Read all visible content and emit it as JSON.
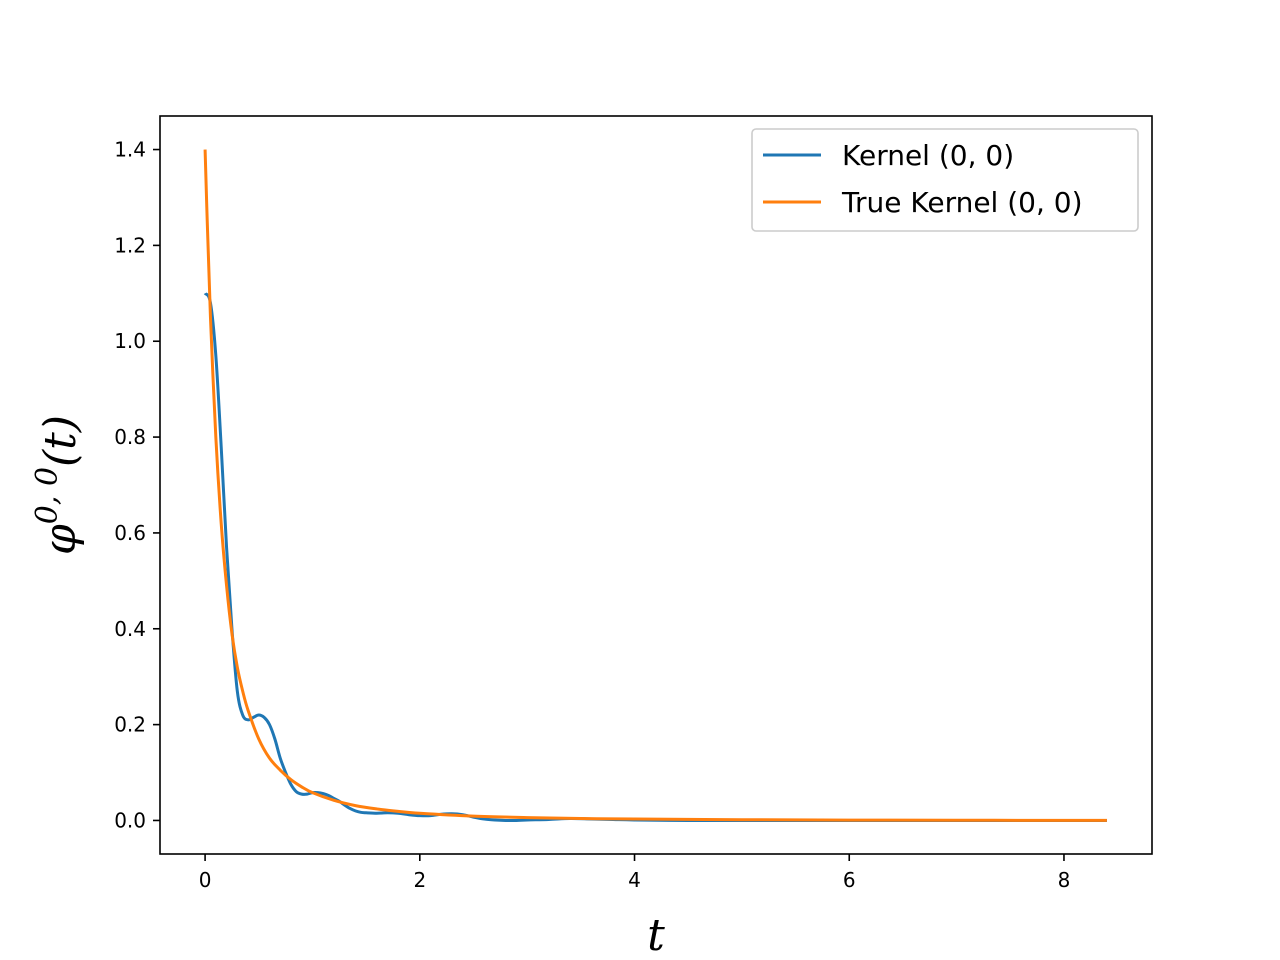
{
  "chart_data": {
    "type": "line",
    "title": "",
    "xlabel": "t",
    "ylabel": "φ0,0(t)",
    "ylabel_parts": {
      "base": "φ",
      "sup": "0, 0",
      "arg": "(t)"
    },
    "xlim": [
      -0.42,
      8.82
    ],
    "ylim": [
      -0.07,
      1.47
    ],
    "xticks": [
      0,
      2,
      4,
      6,
      8
    ],
    "xtick_labels": [
      "0",
      "2",
      "4",
      "6",
      "8"
    ],
    "yticks": [
      0.0,
      0.2,
      0.4,
      0.6,
      0.8,
      1.0,
      1.2,
      1.4
    ],
    "ytick_labels": [
      "0.0",
      "0.2",
      "0.4",
      "0.6",
      "0.8",
      "1.0",
      "1.2",
      "1.4"
    ],
    "grid": false,
    "legend_position": "top-right",
    "series": [
      {
        "name": "Kernel (0, 0)",
        "color": "#1f77b4",
        "x": [
          0,
          0.05,
          0.1,
          0.15,
          0.2,
          0.25,
          0.3,
          0.35,
          0.4,
          0.45,
          0.5,
          0.55,
          0.6,
          0.65,
          0.7,
          0.75,
          0.8,
          0.85,
          0.9,
          0.95,
          1.0,
          1.05,
          1.1,
          1.15,
          1.2,
          1.25,
          1.3,
          1.35,
          1.4,
          1.45,
          1.5,
          1.6,
          1.7,
          1.8,
          1.9,
          2.0,
          2.1,
          2.2,
          2.3,
          2.4,
          2.5,
          2.6,
          2.7,
          2.8,
          2.9,
          3.0,
          3.2,
          3.4,
          3.6,
          3.8,
          4.0,
          4.5,
          5.0,
          6.0,
          7.0,
          8.0,
          8.4
        ],
        "y": [
          1.1,
          1.08,
          0.97,
          0.78,
          0.57,
          0.4,
          0.27,
          0.22,
          0.21,
          0.215,
          0.22,
          0.215,
          0.2,
          0.17,
          0.13,
          0.1,
          0.075,
          0.06,
          0.055,
          0.055,
          0.058,
          0.058,
          0.056,
          0.052,
          0.046,
          0.04,
          0.032,
          0.025,
          0.02,
          0.017,
          0.016,
          0.015,
          0.016,
          0.015,
          0.012,
          0.01,
          0.01,
          0.013,
          0.014,
          0.012,
          0.007,
          0.003,
          0.001,
          0.0,
          0.0,
          0.001,
          0.002,
          0.004,
          0.003,
          0.002,
          0.001,
          0.0,
          0.0,
          0.0,
          0.0,
          0.0,
          0.0
        ]
      },
      {
        "name": "True Kernel (0, 0)",
        "color": "#ff7f0e",
        "x": [
          0,
          0.02,
          0.05,
          0.1,
          0.15,
          0.2,
          0.25,
          0.3,
          0.35,
          0.4,
          0.5,
          0.6,
          0.7,
          0.8,
          0.9,
          1.0,
          1.2,
          1.4,
          1.6,
          1.8,
          2.0,
          2.5,
          3.0,
          3.5,
          4.0,
          5.0,
          6.0,
          7.0,
          8.0,
          8.4
        ],
        "y": [
          1.4,
          1.25,
          1.05,
          0.8,
          0.62,
          0.49,
          0.39,
          0.32,
          0.27,
          0.23,
          0.17,
          0.13,
          0.105,
          0.085,
          0.07,
          0.058,
          0.042,
          0.031,
          0.024,
          0.019,
          0.015,
          0.009,
          0.006,
          0.004,
          0.003,
          0.0015,
          0.0008,
          0.0004,
          0.0002,
          0.0001
        ]
      }
    ]
  }
}
